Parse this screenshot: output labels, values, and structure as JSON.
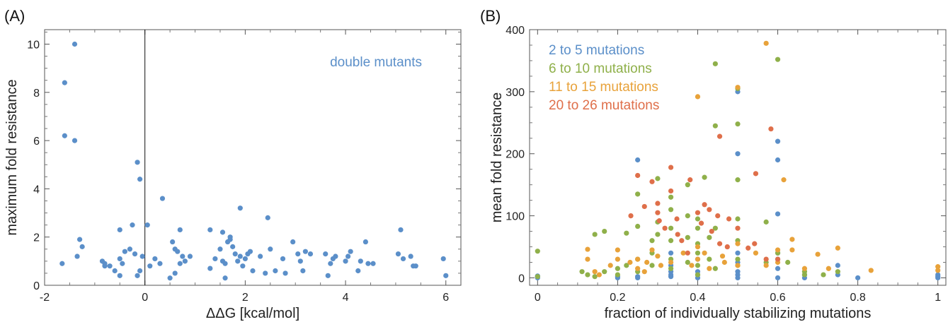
{
  "colors": {
    "blue": "#5b8fc9",
    "green": "#8fb04a",
    "orange": "#e8a23a",
    "red": "#df6f4a",
    "axis": "#555555"
  },
  "chart_data": [
    {
      "type": "scatter",
      "panel_label": "(A)",
      "xlabel": "ΔΔG [kcal/mol]",
      "ylabel": "maximum fold resistance",
      "xlim": [
        -2,
        6.3
      ],
      "ylim": [
        0,
        10.6
      ],
      "xticks": [
        -2,
        0,
        2,
        4,
        6
      ],
      "yticks": [
        0,
        2,
        4,
        6,
        8,
        10
      ],
      "reference_line_x": 0,
      "annotation": "double mutants",
      "grid": false,
      "series": [
        {
          "name": "double mutants",
          "color": "blue",
          "points": [
            [
              -1.6,
              8.4
            ],
            [
              -1.6,
              6.2
            ],
            [
              -1.4,
              10
            ],
            [
              -1.4,
              6
            ],
            [
              -1.65,
              0.9
            ],
            [
              -1.3,
              1.9
            ],
            [
              -1.25,
              1.6
            ],
            [
              -1.35,
              1.2
            ],
            [
              -0.85,
              1
            ],
            [
              -0.8,
              0.9
            ],
            [
              -0.8,
              0.8
            ],
            [
              -0.7,
              0.8
            ],
            [
              -0.6,
              0.6
            ],
            [
              -0.5,
              2.3
            ],
            [
              -0.5,
              1.1
            ],
            [
              -0.45,
              0.9
            ],
            [
              -0.4,
              1.4
            ],
            [
              -0.5,
              0.4
            ],
            [
              -0.3,
              1.5
            ],
            [
              -0.25,
              2.5
            ],
            [
              -0.2,
              1.3
            ],
            [
              -0.15,
              0.4
            ],
            [
              -0.1,
              0.6
            ],
            [
              -0.15,
              5.1
            ],
            [
              -0.1,
              4.4
            ],
            [
              -0.05,
              1.2
            ],
            [
              0.05,
              2.5
            ],
            [
              0.1,
              0.8
            ],
            [
              0.2,
              1.1
            ],
            [
              0.3,
              0.9
            ],
            [
              0.35,
              3.6
            ],
            [
              0.5,
              0.3
            ],
            [
              0.55,
              1.8
            ],
            [
              0.6,
              1.5
            ],
            [
              0.65,
              1.4
            ],
            [
              0.7,
              2.3
            ],
            [
              0.7,
              0.9
            ],
            [
              0.75,
              1.2
            ],
            [
              0.8,
              1
            ],
            [
              0.9,
              1.2
            ],
            [
              0.6,
              0.5
            ],
            [
              1.3,
              2.3
            ],
            [
              1.3,
              0.7
            ],
            [
              1.4,
              1.1
            ],
            [
              1.5,
              1.5
            ],
            [
              1.55,
              2.2
            ],
            [
              1.55,
              1
            ],
            [
              1.6,
              0.9
            ],
            [
              1.6,
              0.3
            ],
            [
              1.65,
              1.8
            ],
            [
              1.7,
              2
            ],
            [
              1.7,
              1.9
            ],
            [
              1.75,
              1.6
            ],
            [
              1.8,
              1.3
            ],
            [
              1.85,
              1
            ],
            [
              1.9,
              3.2
            ],
            [
              1.9,
              1.2
            ],
            [
              1.95,
              0.8
            ],
            [
              2,
              1.1
            ],
            [
              2.05,
              1.3
            ],
            [
              2.1,
              1.4
            ],
            [
              2.15,
              0.6
            ],
            [
              2.3,
              1.2
            ],
            [
              2.4,
              0.5
            ],
            [
              2.45,
              2.8
            ],
            [
              2.5,
              1.5
            ],
            [
              2.6,
              0.6
            ],
            [
              2.75,
              1.1
            ],
            [
              2.8,
              0.5
            ],
            [
              2.95,
              1.8
            ],
            [
              3.05,
              1.3
            ],
            [
              3.1,
              1
            ],
            [
              3.15,
              0.6
            ],
            [
              3.2,
              1.4
            ],
            [
              3.3,
              1.3
            ],
            [
              3.6,
              1.3
            ],
            [
              3.7,
              0.9
            ],
            [
              3.75,
              1.1
            ],
            [
              3.8,
              1.2
            ],
            [
              3.65,
              0.4
            ],
            [
              4,
              1
            ],
            [
              4.05,
              1.2
            ],
            [
              4.1,
              1.4
            ],
            [
              4.25,
              0.6
            ],
            [
              4.3,
              1
            ],
            [
              4.4,
              1.8
            ],
            [
              4.45,
              0.9
            ],
            [
              4.55,
              0.9
            ],
            [
              5.05,
              1.3
            ],
            [
              5.1,
              2.3
            ],
            [
              5.15,
              1.1
            ],
            [
              5.3,
              1.2
            ],
            [
              5.35,
              0.8
            ],
            [
              5.4,
              0.8
            ],
            [
              5.95,
              1.1
            ],
            [
              6,
              0.4
            ]
          ]
        }
      ]
    },
    {
      "type": "scatter",
      "panel_label": "(B)",
      "xlabel": "fraction of individually stabilizing mutations",
      "ylabel": "mean fold resistance",
      "xlim": [
        -0.02,
        1.02
      ],
      "ylim": [
        -12,
        400
      ],
      "xticks": [
        0,
        0.2,
        0.4,
        0.6,
        0.8,
        1
      ],
      "xtick_labels": [
        "0",
        "0.2",
        "0.4",
        "0.6",
        "0.8",
        "1"
      ],
      "yticks": [
        0,
        100,
        200,
        300,
        400
      ],
      "grid": false,
      "legend_position": "top-left",
      "series": [
        {
          "name": "2 to 5 mutations",
          "color": "blue",
          "points": [
            [
              0,
              2
            ],
            [
              0,
              0
            ],
            [
              0,
              3
            ],
            [
              0.2,
              0
            ],
            [
              0.2,
              2
            ],
            [
              0.25,
              2
            ],
            [
              0.25,
              190
            ],
            [
              0.25,
              0
            ],
            [
              0.333,
              2
            ],
            [
              0.333,
              5
            ],
            [
              0.333,
              10
            ],
            [
              0.333,
              20
            ],
            [
              0.333,
              40
            ],
            [
              0.4,
              0
            ],
            [
              0.4,
              5
            ],
            [
              0.4,
              10
            ],
            [
              0.4,
              30
            ],
            [
              0.5,
              300
            ],
            [
              0.5,
              200
            ],
            [
              0.5,
              40
            ],
            [
              0.5,
              25
            ],
            [
              0.5,
              10
            ],
            [
              0.5,
              5
            ],
            [
              0.5,
              0
            ],
            [
              0.6,
              220
            ],
            [
              0.6,
              190
            ],
            [
              0.6,
              103
            ],
            [
              0.6,
              40
            ],
            [
              0.6,
              30
            ],
            [
              0.6,
              15
            ],
            [
              0.6,
              0
            ],
            [
              0.667,
              5
            ],
            [
              0.667,
              0
            ],
            [
              0.75,
              5
            ],
            [
              0.75,
              20
            ],
            [
              0.8,
              0
            ],
            [
              1,
              0
            ],
            [
              1,
              2
            ],
            [
              1,
              5
            ]
          ]
        },
        {
          "name": "6 to 10 mutations",
          "color": "green",
          "points": [
            [
              0,
              43
            ],
            [
              0,
              2
            ],
            [
              0.111,
              10
            ],
            [
              0.125,
              5
            ],
            [
              0.143,
              2
            ],
            [
              0.143,
              70
            ],
            [
              0.167,
              75
            ],
            [
              0.167,
              10
            ],
            [
              0.2,
              5
            ],
            [
              0.2,
              15
            ],
            [
              0.222,
              72
            ],
            [
              0.222,
              20
            ],
            [
              0.25,
              135
            ],
            [
              0.25,
              83
            ],
            [
              0.25,
              30
            ],
            [
              0.25,
              10
            ],
            [
              0.286,
              60
            ],
            [
              0.286,
              40
            ],
            [
              0.286,
              20
            ],
            [
              0.3,
              160
            ],
            [
              0.3,
              90
            ],
            [
              0.3,
              70
            ],
            [
              0.333,
              130
            ],
            [
              0.333,
              110
            ],
            [
              0.333,
              80
            ],
            [
              0.333,
              60
            ],
            [
              0.333,
              30
            ],
            [
              0.333,
              15
            ],
            [
              0.375,
              150
            ],
            [
              0.375,
              100
            ],
            [
              0.375,
              65
            ],
            [
              0.375,
              25
            ],
            [
              0.4,
              95
            ],
            [
              0.4,
              80
            ],
            [
              0.4,
              55
            ],
            [
              0.4,
              40
            ],
            [
              0.4,
              20
            ],
            [
              0.4,
              5
            ],
            [
              0.417,
              162
            ],
            [
              0.429,
              65
            ],
            [
              0.429,
              30
            ],
            [
              0.444,
              345
            ],
            [
              0.444,
              245
            ],
            [
              0.444,
              80
            ],
            [
              0.444,
              15
            ],
            [
              0.5,
              158
            ],
            [
              0.5,
              248
            ],
            [
              0.5,
              305
            ],
            [
              0.5,
              95
            ],
            [
              0.5,
              60
            ],
            [
              0.5,
              30
            ],
            [
              0.5,
              20
            ],
            [
              0.571,
              90
            ],
            [
              0.571,
              25
            ],
            [
              0.6,
              352
            ],
            [
              0.6,
              40
            ],
            [
              0.625,
              25
            ],
            [
              0.667,
              10
            ],
            [
              0.667,
              5
            ],
            [
              0.714,
              5
            ],
            [
              0.75,
              10
            ]
          ]
        },
        {
          "name": "11 to 15 mutations",
          "color": "orange",
          "points": [
            [
              0.125,
              46
            ],
            [
              0.125,
              30
            ],
            [
              0.143,
              10
            ],
            [
              0.154,
              5
            ],
            [
              0.182,
              20
            ],
            [
              0.2,
              30
            ],
            [
              0.2,
              45
            ],
            [
              0.231,
              25
            ],
            [
              0.25,
              30
            ],
            [
              0.25,
              15
            ],
            [
              0.267,
              10
            ],
            [
              0.273,
              25
            ],
            [
              0.286,
              45
            ],
            [
              0.3,
              35
            ],
            [
              0.308,
              20
            ],
            [
              0.333,
              25
            ],
            [
              0.364,
              40
            ],
            [
              0.385,
              20
            ],
            [
              0.4,
              292
            ],
            [
              0.4,
              50
            ],
            [
              0.4,
              30
            ],
            [
              0.417,
              40
            ],
            [
              0.429,
              15
            ],
            [
              0.462,
              35
            ],
            [
              0.467,
              25
            ],
            [
              0.5,
              307
            ],
            [
              0.5,
              55
            ],
            [
              0.5,
              20
            ],
            [
              0.545,
              40
            ],
            [
              0.571,
              378
            ],
            [
              0.571,
              20
            ],
            [
              0.6,
              45
            ],
            [
              0.6,
              25
            ],
            [
              0.615,
              158
            ],
            [
              0.636,
              62
            ],
            [
              0.636,
              45
            ],
            [
              0.667,
              15
            ],
            [
              0.7,
              38
            ],
            [
              0.727,
              15
            ],
            [
              0.75,
              48
            ],
            [
              0.833,
              12
            ],
            [
              1,
              18
            ],
            [
              1,
              12
            ]
          ]
        },
        {
          "name": "20 to 26 mutations",
          "color": "red",
          "points": [
            [
              0.233,
              100
            ],
            [
              0.25,
              165
            ],
            [
              0.267,
              115
            ],
            [
              0.286,
              155
            ],
            [
              0.3,
              105
            ],
            [
              0.3,
              120
            ],
            [
              0.304,
              92
            ],
            [
              0.318,
              80
            ],
            [
              0.333,
              178
            ],
            [
              0.333,
              140
            ],
            [
              0.348,
              95
            ],
            [
              0.35,
              70
            ],
            [
              0.36,
              60
            ],
            [
              0.375,
              40
            ],
            [
              0.381,
              158
            ],
            [
              0.4,
              105
            ],
            [
              0.409,
              88
            ],
            [
              0.417,
              118
            ],
            [
              0.429,
              110
            ],
            [
              0.435,
              75
            ],
            [
              0.45,
              100
            ],
            [
              0.455,
              228
            ],
            [
              0.455,
              55
            ],
            [
              0.474,
              50
            ],
            [
              0.478,
              95
            ],
            [
              0.5,
              80
            ],
            [
              0.526,
              48
            ],
            [
              0.542,
              55
            ],
            [
              0.545,
              168
            ],
            [
              0.571,
              30
            ],
            [
              0.583,
              240
            ],
            [
              0.6,
              30
            ]
          ]
        }
      ]
    }
  ]
}
